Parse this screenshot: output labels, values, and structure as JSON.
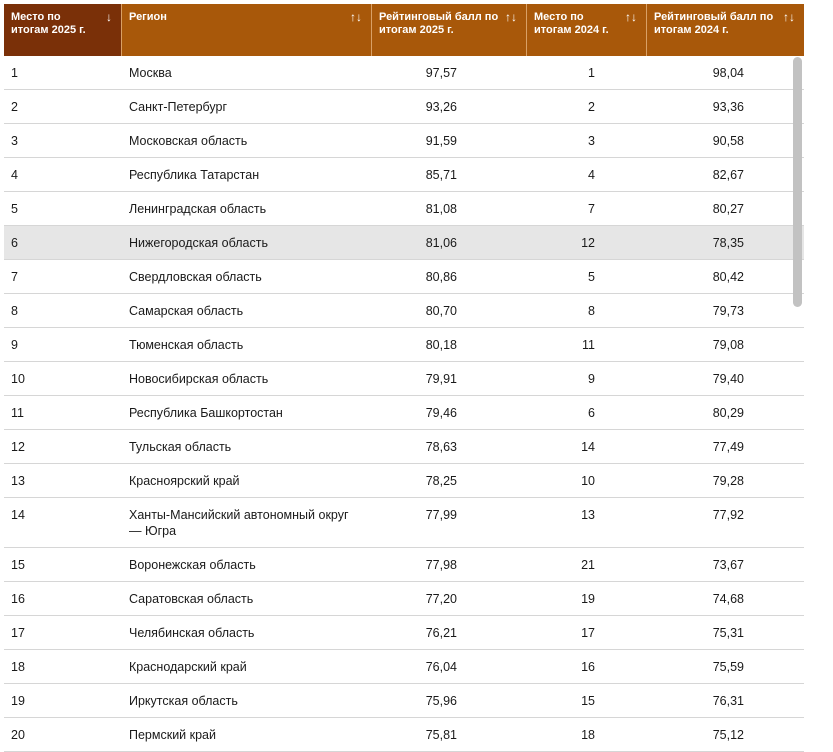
{
  "headers": [
    {
      "label": "Место по итогам 2025 г.",
      "sort_icon": "↓"
    },
    {
      "label": "Регион",
      "sort_icon": "↑↓"
    },
    {
      "label": "Рейтинговый балл по итогам 2025 г.",
      "sort_icon": "↑↓"
    },
    {
      "label": "Место по итогам 2024 г.",
      "sort_icon": "↑↓"
    },
    {
      "label": "Рейтинговый балл по итогам 2024 г.",
      "sort_icon": "↑↓"
    }
  ],
  "rows": [
    {
      "place": "1",
      "region": "Москва",
      "score2025": "97,57",
      "place2024": "1",
      "score2024": "98,04"
    },
    {
      "place": "2",
      "region": "Санкт-Петербург",
      "score2025": "93,26",
      "place2024": "2",
      "score2024": "93,36"
    },
    {
      "place": "3",
      "region": "Московская область",
      "score2025": "91,59",
      "place2024": "3",
      "score2024": "90,58"
    },
    {
      "place": "4",
      "region": "Республика Татарстан",
      "score2025": "85,71",
      "place2024": "4",
      "score2024": "82,67"
    },
    {
      "place": "5",
      "region": "Ленинградская область",
      "score2025": "81,08",
      "place2024": "7",
      "score2024": "80,27"
    },
    {
      "place": "6",
      "region": "Нижегородская область",
      "score2025": "81,06",
      "place2024": "12",
      "score2024": "78,35"
    },
    {
      "place": "7",
      "region": "Свердловская область",
      "score2025": "80,86",
      "place2024": "5",
      "score2024": "80,42"
    },
    {
      "place": "8",
      "region": "Самарская область",
      "score2025": "80,70",
      "place2024": "8",
      "score2024": "79,73"
    },
    {
      "place": "9",
      "region": "Тюменская область",
      "score2025": "80,18",
      "place2024": "11",
      "score2024": "79,08"
    },
    {
      "place": "10",
      "region": "Новосибирская область",
      "score2025": "79,91",
      "place2024": "9",
      "score2024": "79,40"
    },
    {
      "place": "11",
      "region": "Республика Башкортостан",
      "score2025": "79,46",
      "place2024": "6",
      "score2024": "80,29"
    },
    {
      "place": "12",
      "region": "Тульская область",
      "score2025": "78,63",
      "place2024": "14",
      "score2024": "77,49"
    },
    {
      "place": "13",
      "region": "Красноярский край",
      "score2025": "78,25",
      "place2024": "10",
      "score2024": "79,28"
    },
    {
      "place": "14",
      "region": "Ханты-Мансийский автономный округ — Югра",
      "score2025": "77,99",
      "place2024": "13",
      "score2024": "77,92"
    },
    {
      "place": "15",
      "region": "Воронежская область",
      "score2025": "77,98",
      "place2024": "21",
      "score2024": "73,67"
    },
    {
      "place": "16",
      "region": "Саратовская область",
      "score2025": "77,20",
      "place2024": "19",
      "score2024": "74,68"
    },
    {
      "place": "17",
      "region": "Челябинская область",
      "score2025": "76,21",
      "place2024": "17",
      "score2024": "75,31"
    },
    {
      "place": "18",
      "region": "Краснодарский край",
      "score2025": "76,04",
      "place2024": "16",
      "score2024": "75,59"
    },
    {
      "place": "19",
      "region": "Иркутская область",
      "score2025": "75,96",
      "place2024": "15",
      "score2024": "76,31"
    },
    {
      "place": "20",
      "region": "Пермский край",
      "score2025": "75,81",
      "place2024": "18",
      "score2024": "75,12"
    }
  ],
  "highlighted_row_index": 5,
  "colors": {
    "header_bg": "#a8580a",
    "header_active_bg": "#7a3008",
    "highlight_row": "#e6e6e6"
  }
}
